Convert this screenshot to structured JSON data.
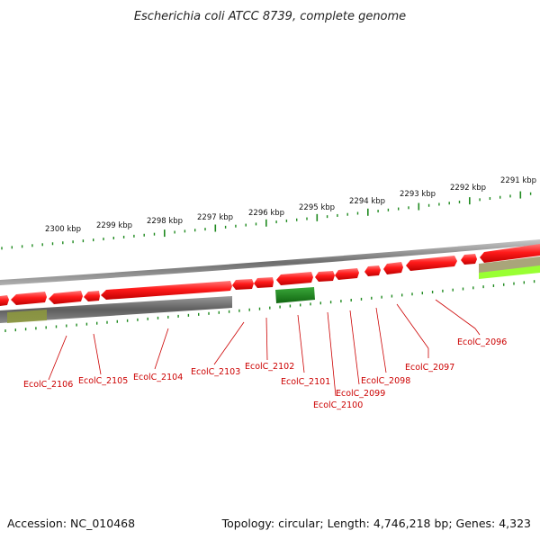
{
  "title": "Escherichia coli ATCC 8739, complete genome",
  "footer": {
    "accession": "Accession: NC_010468",
    "summary": "Topology: circular; Length: 4,746,218 bp; Genes: 4,323"
  },
  "colors": {
    "forward_gene": "#e8000b",
    "reverse_gene": "#e8000b",
    "rna_gene": "#1f8a1f",
    "backbone": "#7a7a7a",
    "gc_content": "#b0b060",
    "gc_skew_pos": "#99ff33",
    "label": "#cc0000",
    "tick": "#1f8a1f"
  },
  "scale": {
    "unit": "kbp",
    "labels": [
      "2300 kbp",
      "2299 kbp",
      "2298 kbp",
      "2297 kbp",
      "2296 kbp",
      "2295 kbp",
      "2294 kbp",
      "2293 kbp",
      "2292 kbp",
      "2291 kbp"
    ]
  },
  "genes": [
    {
      "label": "EcolC_2106"
    },
    {
      "label": "EcolC_2105"
    },
    {
      "label": "EcolC_2104"
    },
    {
      "label": "EcolC_2103"
    },
    {
      "label": "EcolC_2102"
    },
    {
      "label": "EcolC_2101"
    },
    {
      "label": "EcolC_2100"
    },
    {
      "label": "EcolC_2099"
    },
    {
      "label": "EcolC_2098"
    },
    {
      "label": "EcolC_2097"
    },
    {
      "label": "EcolC_2096"
    }
  ]
}
